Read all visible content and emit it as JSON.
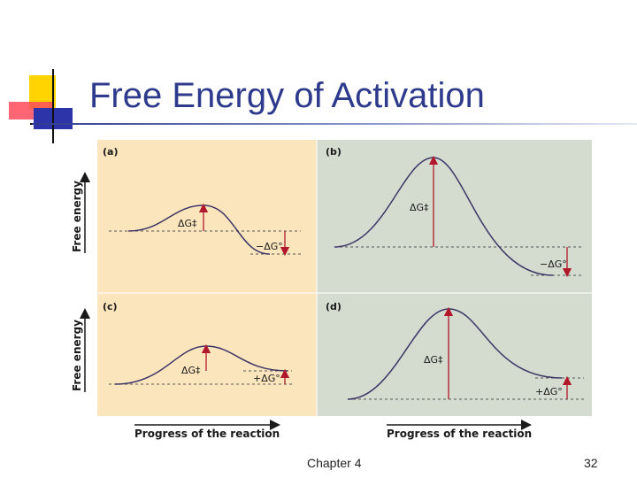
{
  "slide": {
    "title": "Free Energy of Activation",
    "footer_left": "Chapter 4",
    "page_number": "32",
    "colors": {
      "title": "#2e3a8c",
      "panel_warm": "#fbe5bd",
      "panel_cool": "#d3dccf",
      "curve": "#3d3566",
      "arrow": "#b2182b"
    }
  },
  "figure": {
    "y_axis_label": "Free energy",
    "x_axis_label": "Progress of the reaction",
    "panels": [
      {
        "letter": "(a)",
        "barrier_label": "ΔG‡",
        "delta_label": "−ΔG°"
      },
      {
        "letter": "(b)",
        "barrier_label": "ΔG‡",
        "delta_label": "−ΔG°"
      },
      {
        "letter": "(c)",
        "barrier_label": "ΔG‡",
        "delta_label": "+ΔG°"
      },
      {
        "letter": "(d)",
        "barrier_label": "ΔG‡",
        "delta_label": "+ΔG°"
      }
    ]
  }
}
